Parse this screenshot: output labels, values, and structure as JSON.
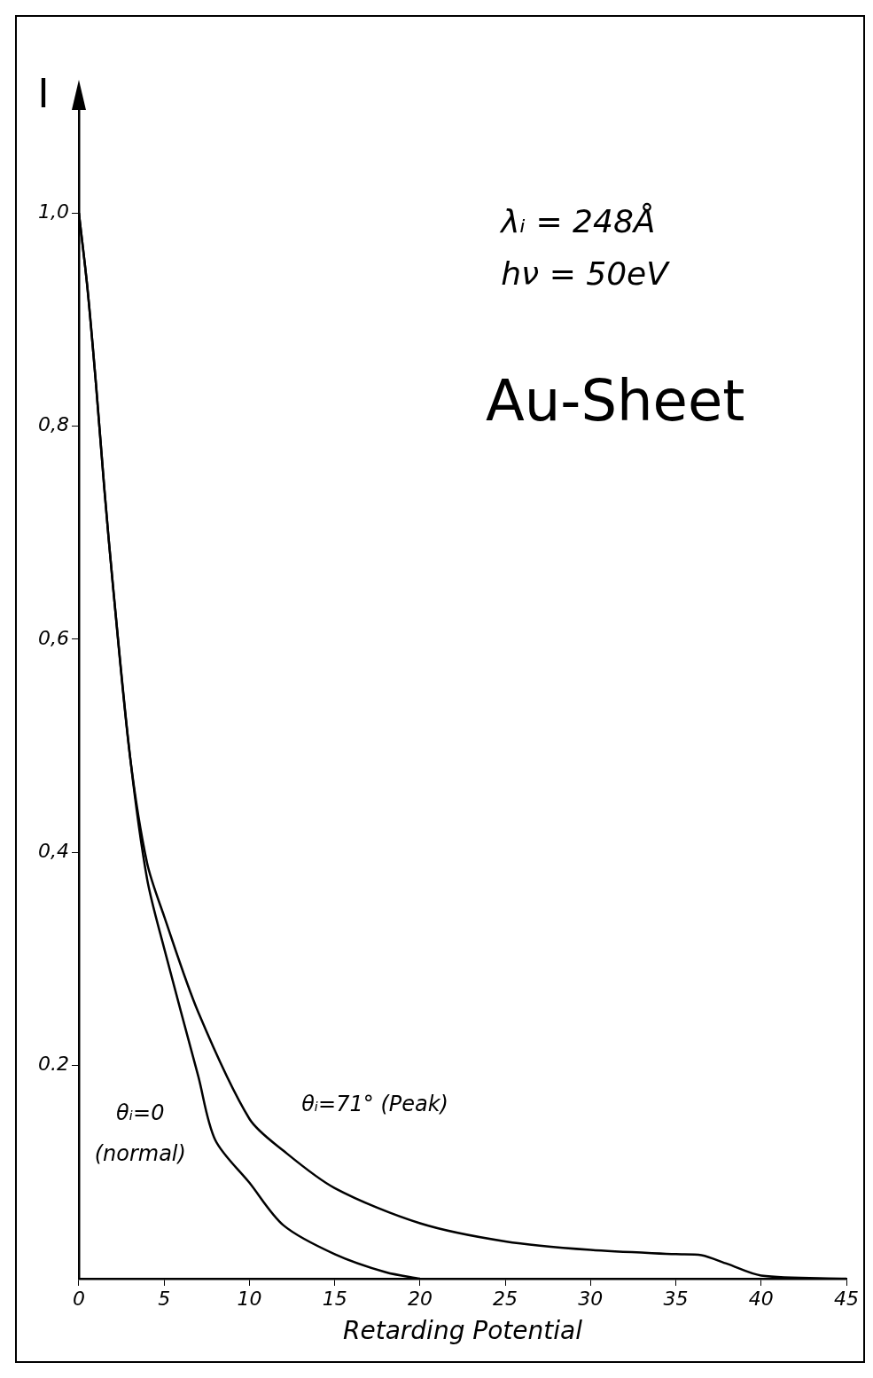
{
  "chart_data": {
    "type": "line",
    "title": "Au-Sheet",
    "annotations": [
      "λᵢ = 248Å",
      "hν = 50eV"
    ],
    "xlabel": "Retarding Potential",
    "ylabel": "I",
    "xlim": [
      0,
      45
    ],
    "ylim": [
      0,
      1.1
    ],
    "xticks": [
      0,
      5,
      10,
      15,
      20,
      25,
      30,
      35,
      40,
      45
    ],
    "yticks": [
      {
        "value": 0.2,
        "label": "0.2"
      },
      {
        "value": 0.4,
        "label": "0,4"
      },
      {
        "value": 0.6,
        "label": "0,6"
      },
      {
        "value": 0.8,
        "label": "0,8"
      },
      {
        "value": 1.0,
        "label": "1,0"
      }
    ],
    "grid": false,
    "series": [
      {
        "name": "θᵢ=0 (normal)",
        "color": "#000000",
        "x": [
          0,
          0.5,
          1,
          1.5,
          2,
          3,
          4,
          5,
          7,
          8,
          10,
          12,
          15,
          18,
          20
        ],
        "values": [
          1.0,
          0.93,
          0.84,
          0.74,
          0.65,
          0.49,
          0.375,
          0.31,
          0.19,
          0.13,
          0.09,
          0.05,
          0.023,
          0.006,
          0.0
        ]
      },
      {
        "name": "θᵢ=71° (Peak)",
        "color": "#000000",
        "x": [
          0,
          0.5,
          1,
          1.5,
          2,
          3,
          4,
          5,
          7,
          10,
          12,
          15,
          20,
          25,
          30,
          35,
          36.5,
          38,
          40,
          45
        ],
        "values": [
          1.0,
          0.93,
          0.84,
          0.74,
          0.65,
          0.49,
          0.39,
          0.34,
          0.25,
          0.15,
          0.12,
          0.085,
          0.052,
          0.035,
          0.027,
          0.023,
          0.022,
          0.014,
          0.003,
          0.0
        ]
      }
    ]
  }
}
